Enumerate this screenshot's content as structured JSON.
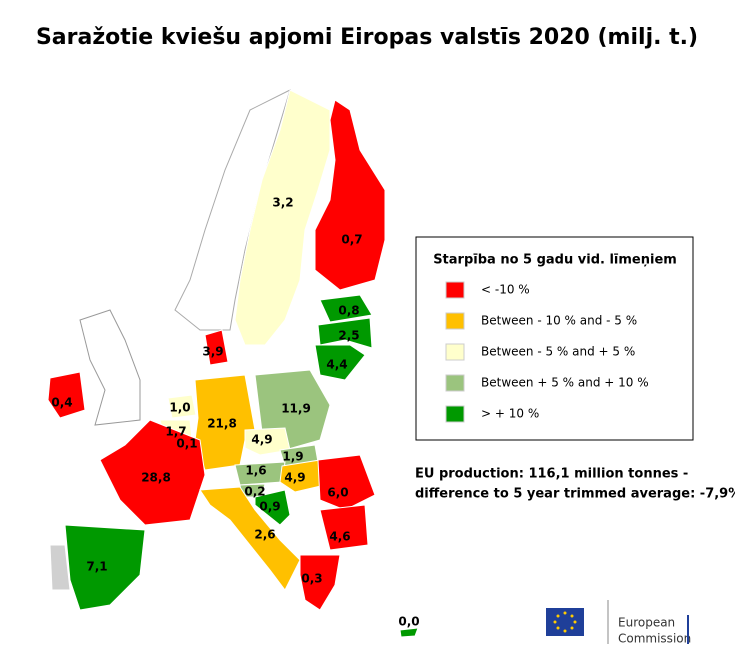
{
  "title": "Saražotie kviešu apjomi Eiropas valstīs 2020 (milj. t.)",
  "legend": {
    "title": "Starpība no 5 gadu vid. līmeņiem",
    "items": [
      {
        "label": "< -10 %",
        "color": "#ff0000"
      },
      {
        "label": "Between - 10 % and - 5 %",
        "color": "#ffc000"
      },
      {
        "label": "Between - 5 % and + 5 %",
        "color": "#ffffcc"
      },
      {
        "label": "Between + 5 % and + 10 %",
        "color": "#9bc47e"
      },
      {
        "label": "> + 10 %",
        "color": "#009900"
      }
    ]
  },
  "regions": [
    {
      "label": "3,2",
      "color": "#ffffcc"
    },
    {
      "label": "0,7",
      "color": "#ff0000"
    },
    {
      "label": "0,8",
      "color": "#009900"
    },
    {
      "label": "2,5",
      "color": "#009900"
    },
    {
      "label": "4,4",
      "color": "#009900"
    },
    {
      "label": "3,9",
      "color": "#ff0000"
    },
    {
      "label": "0,4",
      "color": "#ff0000"
    },
    {
      "label": "1,0",
      "color": "#ffffcc"
    },
    {
      "label": "1,7",
      "color": "#ffffcc"
    },
    {
      "label": "0,1",
      "color": "#ffffcc"
    },
    {
      "label": "21,8",
      "color": "#ffc000"
    },
    {
      "label": "11,9",
      "color": "#9bc47e"
    },
    {
      "label": "4,9",
      "color": "#ffffcc"
    },
    {
      "label": "1,9",
      "color": "#9bc47e"
    },
    {
      "label": "1,6",
      "color": "#9bc47e"
    },
    {
      "label": "4,9",
      "color": "#ffc000"
    },
    {
      "label": "28,8",
      "color": "#ff0000"
    },
    {
      "label": "0,2",
      "color": "#9bc47e"
    },
    {
      "label": "0,9",
      "color": "#009900"
    },
    {
      "label": "6,0",
      "color": "#ff0000"
    },
    {
      "label": "4,6",
      "color": "#ff0000"
    },
    {
      "label": "2,6",
      "color": "#ffc000"
    },
    {
      "label": "7,1",
      "color": "#009900"
    },
    {
      "label": "0,3",
      "color": "#ff0000"
    },
    {
      "label": "0,0",
      "color": "#009900"
    }
  ],
  "summary": [
    "EU production: 116,1 million tonnes -",
    "difference to 5 year trimmed average: -7,9%"
  ],
  "logo": [
    "European",
    "Commission"
  ]
}
